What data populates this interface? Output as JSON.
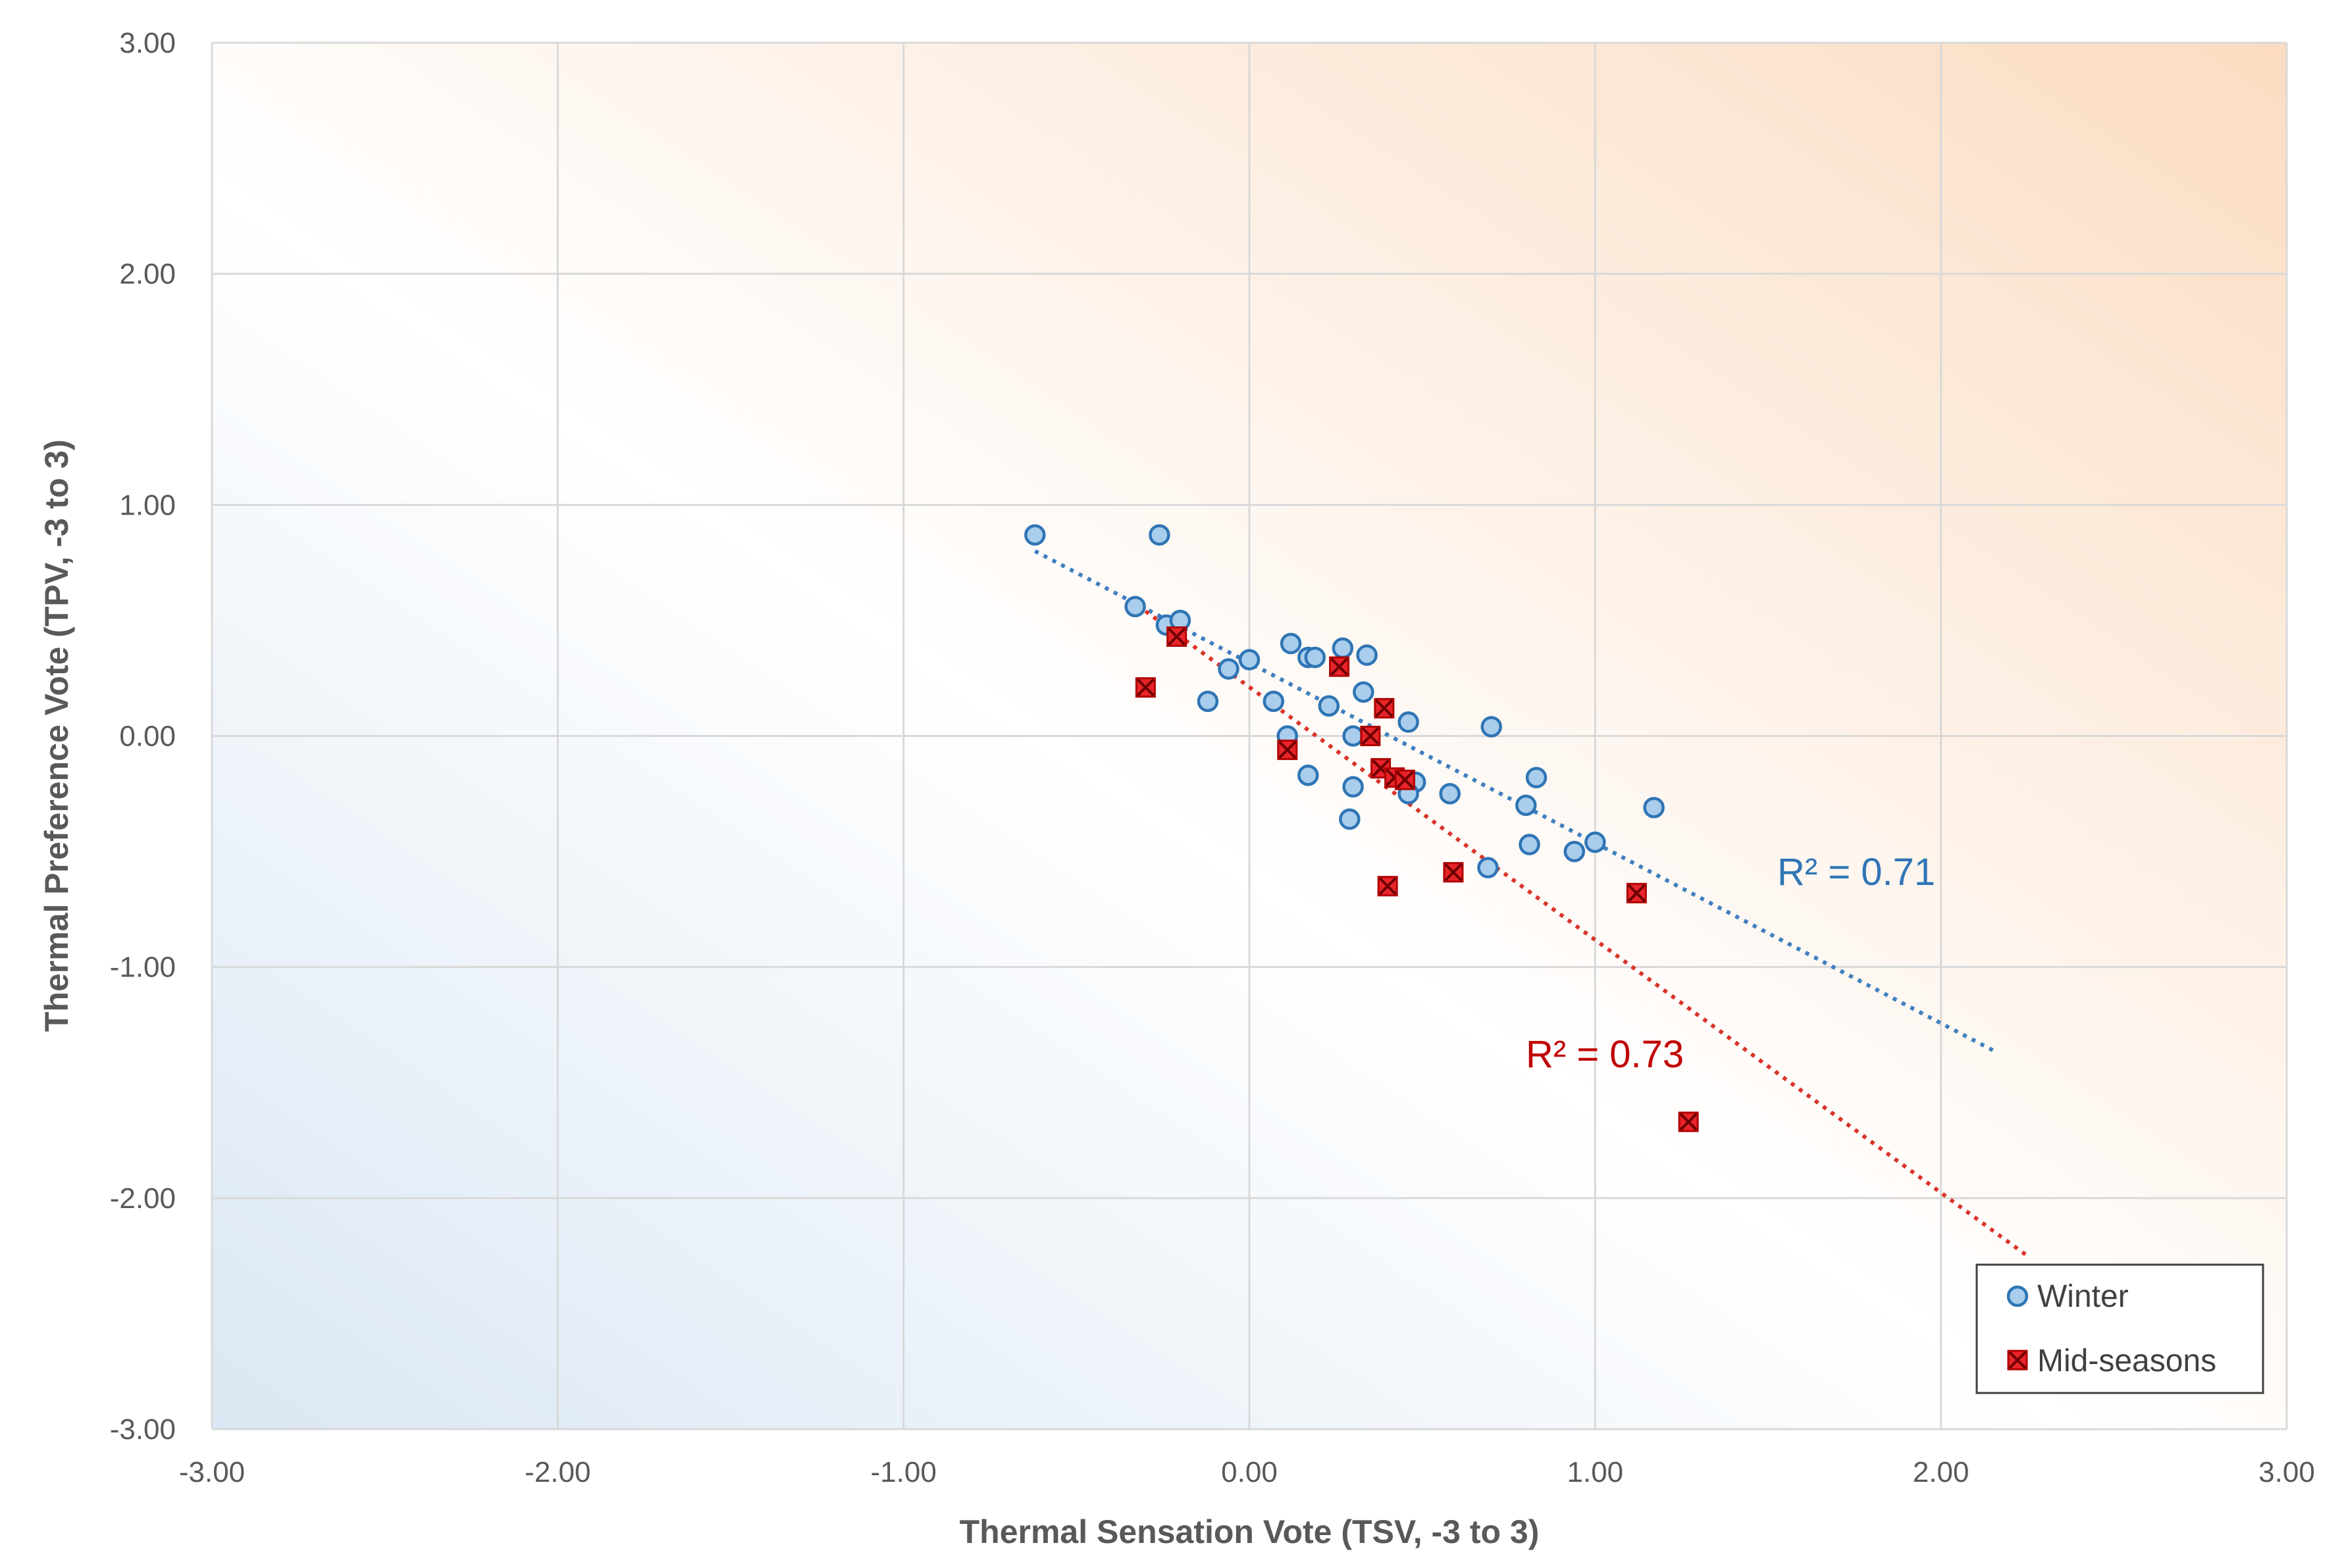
{
  "chart_data": {
    "type": "scatter",
    "xlabel": "Thermal Sensation Vote (TSV, -3 to 3)",
    "ylabel": "Thermal Preference Vote (TPV, -3 to 3)",
    "xlim": [
      -3,
      3
    ],
    "ylim": [
      -3,
      3
    ],
    "x_ticks": [
      "-3.00",
      "-2.00",
      "-1.00",
      "0.00",
      "1.00",
      "2.00",
      "3.00"
    ],
    "y_ticks": [
      "-3.00",
      "-2.00",
      "-1.00",
      "0.00",
      "1.00",
      "2.00",
      "3.00"
    ],
    "grid": true,
    "legend_position": "bottom-right",
    "colors": {
      "winter_fill": "#a9cdec",
      "winter_stroke": "#2f75b5",
      "winter_trend": "#3f7fbf",
      "mid_fill": "#e8242a",
      "mid_stroke": "#b00000",
      "mid_trend": "#d9342b"
    },
    "series": [
      {
        "name": "Winter",
        "marker": "circle",
        "points": [
          [
            -0.62,
            0.87
          ],
          [
            -0.26,
            0.87
          ],
          [
            -0.33,
            0.56
          ],
          [
            -0.24,
            0.48
          ],
          [
            -0.2,
            0.5
          ],
          [
            -0.06,
            0.29
          ],
          [
            0.0,
            0.33
          ],
          [
            -0.12,
            0.15
          ],
          [
            0.12,
            0.4
          ],
          [
            0.17,
            0.34
          ],
          [
            0.19,
            0.34
          ],
          [
            0.27,
            0.38
          ],
          [
            0.34,
            0.35
          ],
          [
            0.07,
            0.15
          ],
          [
            0.23,
            0.13
          ],
          [
            0.33,
            0.19
          ],
          [
            0.11,
            0.0
          ],
          [
            0.3,
            0.0
          ],
          [
            0.46,
            0.06
          ],
          [
            0.7,
            0.04
          ],
          [
            0.17,
            -0.17
          ],
          [
            0.3,
            -0.22
          ],
          [
            0.29,
            -0.36
          ],
          [
            0.48,
            -0.2
          ],
          [
            0.46,
            -0.25
          ],
          [
            0.58,
            -0.25
          ],
          [
            0.8,
            -0.3
          ],
          [
            0.83,
            -0.18
          ],
          [
            0.81,
            -0.47
          ],
          [
            0.94,
            -0.5
          ],
          [
            1.0,
            -0.46
          ],
          [
            0.69,
            -0.57
          ],
          [
            1.17,
            -0.31
          ]
        ],
        "trendline": {
          "x": [
            -0.62,
            2.15
          ],
          "y": [
            0.8,
            -1.36
          ],
          "r2_label": "R² = 0.71"
        }
      },
      {
        "name": "Mid-seasons",
        "marker": "x-square",
        "points": [
          [
            -0.21,
            0.43
          ],
          [
            -0.3,
            0.21
          ],
          [
            0.26,
            0.3
          ],
          [
            0.39,
            0.12
          ],
          [
            0.35,
            0.0
          ],
          [
            0.11,
            -0.06
          ],
          [
            0.38,
            -0.14
          ],
          [
            0.42,
            -0.18
          ],
          [
            0.45,
            -0.19
          ],
          [
            0.4,
            -0.65
          ],
          [
            0.59,
            -0.59
          ],
          [
            1.12,
            -0.68
          ],
          [
            1.27,
            -1.67
          ]
        ],
        "trendline": {
          "x": [
            -0.3,
            2.25
          ],
          "y": [
            0.54,
            -2.25
          ],
          "r2_label": "R² = 0.73"
        }
      }
    ]
  }
}
